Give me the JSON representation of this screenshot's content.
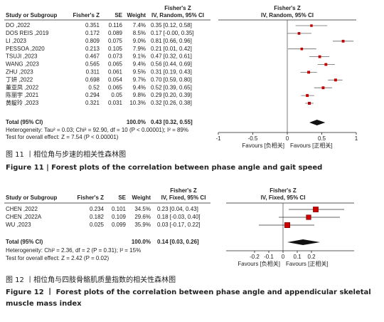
{
  "figures": [
    {
      "columns": {
        "study": "Study or Subgroup",
        "z": "Fisher's Z",
        "se": "SE",
        "weight": "Weight",
        "effect_group": "Fisher's Z",
        "effect_method": "IV, Random, 95% CI"
      },
      "plot_header": {
        "title": "Fisher's Z",
        "method": "IV, Random, 95% CI"
      },
      "studies": [
        {
          "name": "DO ,2022",
          "z": 0.351,
          "se": 0.116,
          "weight": 7.4,
          "weight_label": "7.4%",
          "ci_label": "0.35 [0.12, 0.58]",
          "est": 0.35,
          "lo": 0.12,
          "hi": 0.58
        },
        {
          "name": "DOS REIS ,2019",
          "z": 0.172,
          "se": 0.089,
          "weight": 8.5,
          "weight_label": "8.5%",
          "ci_label": "0.17 [-0.00, 0.35]",
          "est": 0.17,
          "lo": 0,
          "hi": 0.35
        },
        {
          "name": "LI ,2023",
          "z": 0.809,
          "se": 0.075,
          "weight": 9.0,
          "weight_label": "9.0%",
          "ci_label": "0.81 [0.66, 0.96]",
          "est": 0.81,
          "lo": 0.66,
          "hi": 0.96
        },
        {
          "name": "PESSOA ,2020",
          "z": 0.213,
          "se": 0.105,
          "weight": 7.9,
          "weight_label": "7.9%",
          "ci_label": "0.21 [0.01, 0.42]",
          "est": 0.21,
          "lo": 0.01,
          "hi": 0.42
        },
        {
          "name": "TSUJI ,2023",
          "z": 0.467,
          "se": 0.073,
          "weight": 9.1,
          "weight_label": "9.1%",
          "ci_label": "0.47 [0.32, 0.61]",
          "est": 0.47,
          "lo": 0.32,
          "hi": 0.61
        },
        {
          "name": "WANG ,2023",
          "z": 0.565,
          "se": 0.065,
          "weight": 9.4,
          "weight_label": "9.4%",
          "ci_label": "0.56 [0.44, 0.69]",
          "est": 0.56,
          "lo": 0.44,
          "hi": 0.69
        },
        {
          "name": "ZHU ,2023",
          "z": 0.311,
          "se": 0.061,
          "weight": 9.5,
          "weight_label": "9.5%",
          "ci_label": "0.31 [0.19, 0.43]",
          "est": 0.31,
          "lo": 0.19,
          "hi": 0.43
        },
        {
          "name": "丁妍 ,2022",
          "z": 0.698,
          "se": 0.054,
          "weight": 9.7,
          "weight_label": "9.7%",
          "ci_label": "0.70 [0.59, 0.80]",
          "est": 0.7,
          "lo": 0.59,
          "hi": 0.8
        },
        {
          "name": "董亚凤 ,2022",
          "z": 0.52,
          "se": 0.065,
          "weight": 9.4,
          "weight_label": "9.4%",
          "ci_label": "0.52 [0.39, 0.65]",
          "est": 0.52,
          "lo": 0.39,
          "hi": 0.65
        },
        {
          "name": "陈丽宇 ,2021",
          "z": 0.294,
          "se": 0.05,
          "weight": 9.8,
          "weight_label": "9.8%",
          "ci_label": "0.29 [0.20, 0.39]",
          "est": 0.29,
          "lo": 0.2,
          "hi": 0.39
        },
        {
          "name": "黄靛玲 ,2023",
          "z": 0.321,
          "se": 0.031,
          "weight": 10.3,
          "weight_label": "10.3%",
          "ci_label": "0.32 [0.26, 0.38]",
          "est": 0.32,
          "lo": 0.26,
          "hi": 0.38
        }
      ],
      "total": {
        "label": "Total (95% CI)",
        "weight_label": "100.0%",
        "ci_label": "0.43 [0.32, 0.55]",
        "est": 0.43,
        "lo": 0.32,
        "hi": 0.55
      },
      "heterogeneity": "Heterogeneity: Tau² = 0.03; Chi² = 92.90, df = 10 (P < 0.00001); I² = 89%",
      "overall_test": "Test for overall effect: Z = 7.54 (P < 0.00001)",
      "axis": {
        "xlim": [
          -1,
          1
        ],
        "xticks": [
          -1,
          -0.5,
          0,
          0.5,
          1
        ],
        "favours_left": "Favours [负相关]",
        "favours_right": "Favours [正相关]"
      },
      "caption_zh": "图 11 丨相位角与步速的相关性森林图",
      "caption_en": "Figure 11 | Forest plots of the correlation between phase angle and gait speed"
    },
    {
      "columns": {
        "study": "Study or Subgroup",
        "z": "Fisher's Z",
        "se": "SE",
        "weight": "Weight",
        "effect_group": "Fisher's Z",
        "effect_method": "IV, Fixed, 95% CI"
      },
      "plot_header": {
        "title": "Fisher's Z",
        "method": "IV, Fixed, 95% CI"
      },
      "studies": [
        {
          "name": "CHEN ,2022",
          "z": 0.234,
          "se": 0.101,
          "weight": 34.5,
          "weight_label": "34.5%",
          "ci_label": "0.23 [0.04, 0.43]",
          "est": 0.23,
          "lo": 0.04,
          "hi": 0.43
        },
        {
          "name": "CHEN ,2022A",
          "z": 0.182,
          "se": 0.109,
          "weight": 29.6,
          "weight_label": "29.6%",
          "ci_label": "0.18 [-0.03, 0.40]",
          "est": 0.18,
          "lo": -0.03,
          "hi": 0.4
        },
        {
          "name": "WU ,2023",
          "z": 0.025,
          "se": 0.099,
          "weight": 35.9,
          "weight_label": "35.9%",
          "ci_label": "0.03 [-0.17, 0.22]",
          "est": 0.03,
          "lo": -0.17,
          "hi": 0.22
        }
      ],
      "total": {
        "label": "Total (95% CI)",
        "weight_label": "100.0%",
        "ci_label": "0.14 [0.03, 0.26]",
        "est": 0.14,
        "lo": 0.03,
        "hi": 0.26
      },
      "heterogeneity": "Heterogeneity: Chi² = 2.36, df = 2 (P = 0.31); I² = 15%",
      "overall_test": "Test for overall effect: Z = 2.42 (P = 0.02)",
      "axis": {
        "xlim": [
          -0.4,
          0.5
        ],
        "xticks": [
          -0.2,
          -0.1,
          0,
          0.1,
          0.2
        ],
        "favours_left": "Favours [负相关]",
        "favours_right": "Favours [正相关]"
      },
      "caption_zh": "图 12 丨相位角与四肢骨骼肌质量指数的相关性森林图",
      "caption_en": "Figure 12 丨 Forest plots of the correlation between phase angle and appendicular skeletal muscle mass index"
    }
  ]
}
